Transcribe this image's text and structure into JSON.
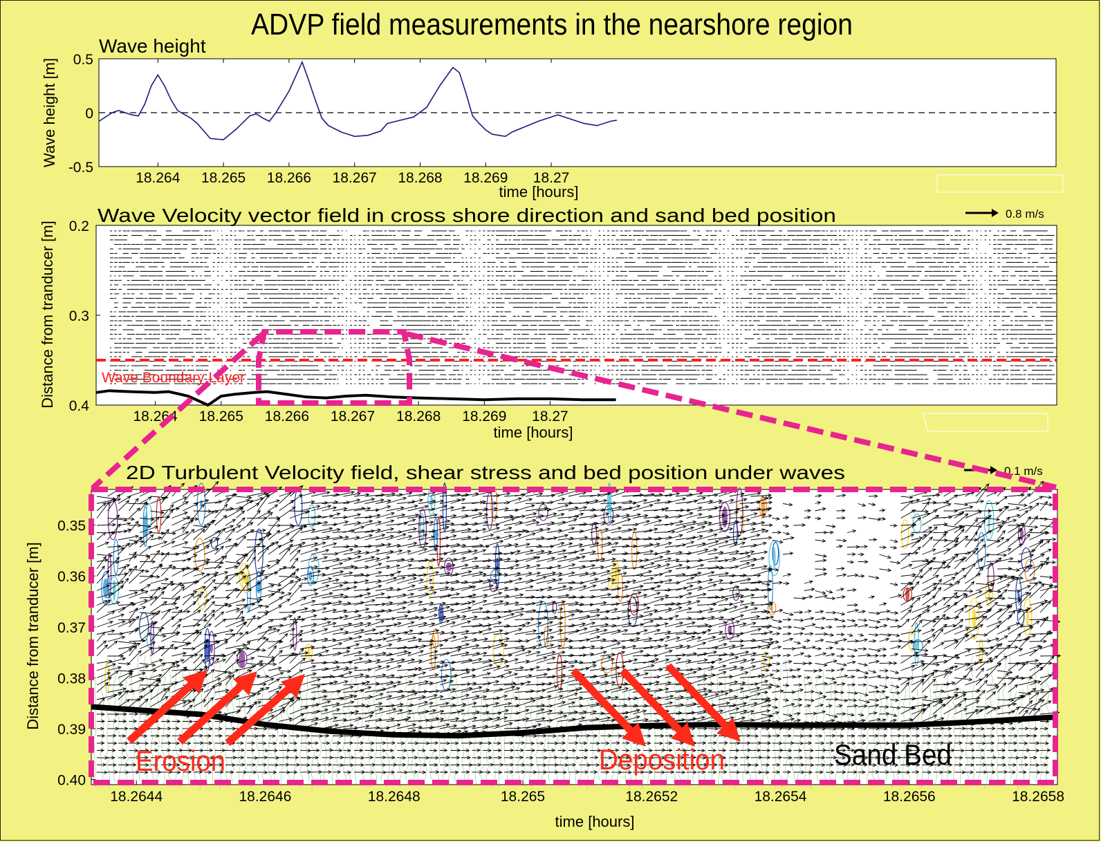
{
  "page": {
    "title": "ADVP field measurements in the nearshore region"
  },
  "chart_data": [
    {
      "type": "line",
      "title": "Wave height",
      "xlabel": "time [hours]",
      "ylabel": "Wave height [m]",
      "xlim": [
        18.2631,
        18.2777
      ],
      "ylim": [
        -0.5,
        0.5
      ],
      "xticks": [
        "18.264",
        "18.265",
        "18.266",
        "18.267",
        "18.268",
        "18.269",
        "18.27"
      ],
      "yticks": [
        "0.5",
        "0",
        "-0.5"
      ],
      "zero_line": "dashed",
      "series": [
        {
          "color": "#1a1a7a",
          "x": [
            18.2631,
            18.2633,
            18.2634,
            18.2636,
            18.2637,
            18.2638,
            18.2639,
            18.264,
            18.2641,
            18.2642,
            18.2643,
            18.2645,
            18.2646,
            18.2648,
            18.265,
            18.2652,
            18.2654,
            18.2655,
            18.2656,
            18.2657,
            18.2658,
            18.266,
            18.2662,
            18.2663,
            18.2664,
            18.2665,
            18.2666,
            18.2668,
            18.267,
            18.2672,
            18.2674,
            18.2675,
            18.2677,
            18.2679,
            18.2681,
            18.2683,
            18.2685,
            18.2686,
            18.2687,
            18.2688,
            18.2689,
            18.269,
            18.2691,
            18.2693,
            18.2694,
            18.2696,
            18.2698,
            18.27,
            18.2701,
            18.2703,
            18.2705,
            18.2707,
            18.2709,
            18.271
          ],
          "y": [
            -0.08,
            0.0,
            0.02,
            -0.02,
            -0.03,
            0.08,
            0.25,
            0.35,
            0.25,
            0.12,
            0.02,
            -0.05,
            -0.1,
            -0.24,
            -0.25,
            -0.15,
            -0.03,
            -0.01,
            -0.05,
            -0.08,
            0.0,
            0.2,
            0.47,
            0.3,
            0.12,
            -0.05,
            -0.12,
            -0.18,
            -0.22,
            -0.21,
            -0.17,
            -0.1,
            -0.07,
            -0.04,
            0.05,
            0.25,
            0.42,
            0.37,
            0.18,
            -0.03,
            -0.1,
            -0.16,
            -0.2,
            -0.22,
            -0.18,
            -0.13,
            -0.08,
            -0.04,
            -0.02,
            -0.06,
            -0.1,
            -0.12,
            -0.08,
            -0.07
          ]
        }
      ]
    },
    {
      "type": "quiver",
      "title": "Wave Velocity vector field in cross shore direction and sand bed position",
      "xlabel": "time [hours]",
      "ylabel": "Distance from tranducer [m]",
      "xlim": [
        18.2631,
        18.2777
      ],
      "ylim": [
        0.2,
        0.4
      ],
      "y_reversed": true,
      "xticks": [
        "18.264",
        "18.265",
        "18.266",
        "18.267",
        "18.268",
        "18.269",
        "18.27"
      ],
      "yticks": [
        "0.2",
        "0.3",
        "0.4"
      ],
      "scale_label": "0.8 m/s",
      "boundary_layer": {
        "label": "Wave Boundary Layer",
        "depth": 0.35,
        "color": "#ff2020"
      },
      "sand_bed": {
        "x": [
          18.2631,
          18.2633,
          18.2636,
          18.264,
          18.2642,
          18.2645,
          18.2648,
          18.265,
          18.2652,
          18.2655,
          18.2657,
          18.266,
          18.2663,
          18.2666,
          18.2669,
          18.2672,
          18.2676,
          18.268,
          18.2685,
          18.269,
          18.2695,
          18.27,
          18.2705,
          18.271
        ],
        "y": [
          0.386,
          0.384,
          0.385,
          0.386,
          0.385,
          0.39,
          0.4,
          0.39,
          0.388,
          0.386,
          0.385,
          0.388,
          0.391,
          0.392,
          0.39,
          0.389,
          0.391,
          0.392,
          0.393,
          0.394,
          0.393,
          0.393,
          0.394,
          0.394
        ]
      }
    },
    {
      "type": "quiver",
      "title": "2D Turbulent Velocity field, shear stress and bed position under waves",
      "xlabel": "time [hours]",
      "ylabel": "Distance from tranducer [m]",
      "xlim": [
        18.26433,
        18.26583
      ],
      "ylim": [
        0.343,
        0.401
      ],
      "y_reversed": true,
      "xticks": [
        "18.2644",
        "18.2646",
        "18.2648",
        "18.265",
        "18.2652",
        "18.2654",
        "18.2656",
        "18.2658"
      ],
      "yticks": [
        "0.35",
        "0.36",
        "0.37",
        "0.38",
        "0.39",
        "0.40"
      ],
      "scale_label": "0.1 m/s",
      "sand_bed": {
        "x": [
          18.26433,
          18.2645,
          18.2646,
          18.2647,
          18.2648,
          18.2649,
          18.265,
          18.2651,
          18.2652,
          18.2653,
          18.2654,
          18.2655,
          18.2656,
          18.2657,
          18.26583
        ],
        "y": [
          0.3857,
          0.3872,
          0.3892,
          0.3905,
          0.3912,
          0.3914,
          0.3908,
          0.3898,
          0.3894,
          0.3892,
          0.3893,
          0.3893,
          0.3893,
          0.3887,
          0.3877
        ]
      },
      "annotations": [
        "Erosion",
        "Deposition",
        "Sand Bed"
      ]
    }
  ]
}
